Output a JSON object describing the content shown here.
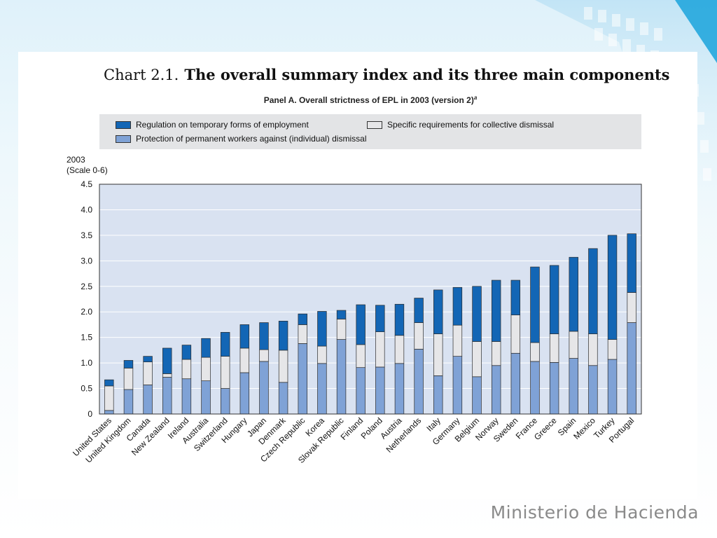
{
  "chart_data": {
    "type": "bar",
    "stacked": true,
    "chart_number": "Chart 2.1.",
    "title": "The overall summary index and its three main components",
    "subtitle": "Panel A. Overall strictness of EPL in 2003 (version 2)",
    "subtitle_note": "a",
    "ylabel_line1": "2003",
    "ylabel_line2": "(Scale 0-6)",
    "ylim": [
      0,
      4.5
    ],
    "yticks": [
      "0",
      "0.5",
      "1.0",
      "1.5",
      "2.0",
      "2.5",
      "3.0",
      "3.5",
      "4.0",
      "4.5"
    ],
    "grid": true,
    "legend_placement": "top",
    "categories": [
      "United States",
      "United Kingdom",
      "Canada",
      "New Zealand",
      "Ireland",
      "Australia",
      "Switzerland",
      "Hungary",
      "Japan",
      "Denmark",
      "Czech Republic",
      "Korea",
      "Slovak Republic",
      "Finland",
      "Poland",
      "Austria",
      "Netherlands",
      "Italy",
      "Germany",
      "Belgium",
      "Norway",
      "Sweden",
      "France",
      "Greece",
      "Spain",
      "Mexico",
      "Turkey",
      "Portugal"
    ],
    "series": [
      {
        "name": "Protection of permanent workers against (individual) dismissal",
        "color": "#7fa2d6",
        "values": [
          0.07,
          0.48,
          0.57,
          0.72,
          0.69,
          0.65,
          0.5,
          0.81,
          1.03,
          0.62,
          1.38,
          0.99,
          1.46,
          0.91,
          0.92,
          0.99,
          1.27,
          0.75,
          1.13,
          0.73,
          0.95,
          1.19,
          1.03,
          1.01,
          1.09,
          0.95,
          1.07,
          1.79
        ]
      },
      {
        "name": "Specific requirements for collective dismissal",
        "color": "#e6e6e8",
        "values": [
          0.48,
          0.42,
          0.45,
          0.07,
          0.38,
          0.46,
          0.63,
          0.48,
          0.23,
          0.63,
          0.37,
          0.34,
          0.4,
          0.45,
          0.69,
          0.55,
          0.52,
          0.82,
          0.61,
          0.69,
          0.47,
          0.75,
          0.37,
          0.56,
          0.53,
          0.62,
          0.39,
          0.59
        ]
      },
      {
        "name": "Regulation on temporary forms of employment",
        "color": "#1366b5",
        "values": [
          0.12,
          0.15,
          0.11,
          0.5,
          0.28,
          0.37,
          0.47,
          0.46,
          0.53,
          0.57,
          0.21,
          0.68,
          0.17,
          0.78,
          0.52,
          0.61,
          0.48,
          0.86,
          0.74,
          1.08,
          1.2,
          0.68,
          1.48,
          1.34,
          1.45,
          1.67,
          2.04,
          1.15
        ]
      }
    ]
  },
  "legend_order": [
    2,
    1,
    0
  ],
  "footer": {
    "brand": "Ministerio de Hacienda"
  },
  "colors": {
    "plot_background": "#d9e2f1",
    "grid": "#ffffff",
    "legend_background": "#e3e4e6"
  }
}
